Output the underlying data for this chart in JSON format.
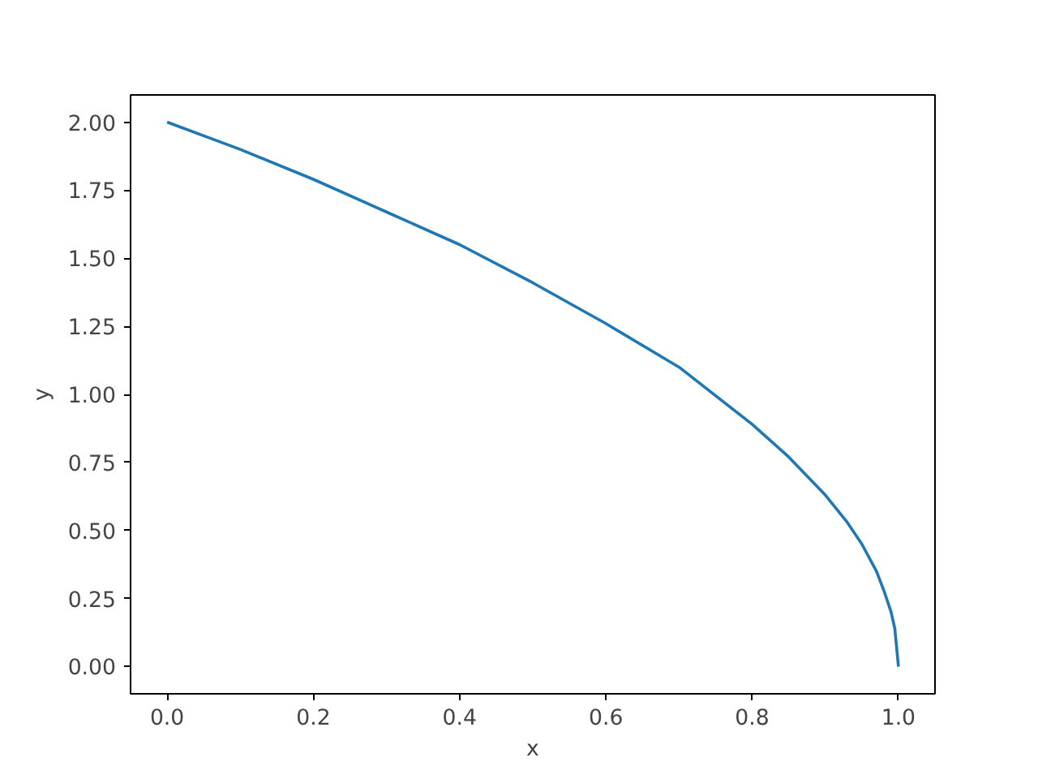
{
  "chart_data": {
    "type": "line",
    "xlabel": "x",
    "ylabel": "y",
    "x": [
      0,
      0.1,
      0.2,
      0.3,
      0.4,
      0.5,
      0.6,
      0.7,
      0.8,
      0.85,
      0.9,
      0.93,
      0.95,
      0.97,
      0.98,
      0.99,
      0.995,
      1.0
    ],
    "series": [
      {
        "color": "#1f77b4",
        "values": [
          2.0,
          1.9,
          1.79,
          1.67,
          1.55,
          1.41,
          1.26,
          1.1,
          0.89,
          0.77,
          0.63,
          0.53,
          0.45,
          0.35,
          0.28,
          0.2,
          0.14,
          0.0
        ]
      }
    ],
    "xlim": [
      -0.05,
      1.05
    ],
    "ylim": [
      -0.1,
      2.1
    ],
    "xticks": [
      {
        "value": 0,
        "label": "0.0"
      },
      {
        "value": 0.2,
        "label": "0.2"
      },
      {
        "value": 0.4,
        "label": "0.4"
      },
      {
        "value": 0.6,
        "label": "0.6"
      },
      {
        "value": 0.8,
        "label": "0.8"
      },
      {
        "value": 1.0,
        "label": "1.0"
      }
    ],
    "yticks": [
      {
        "value": 0,
        "label": "0.00"
      },
      {
        "value": 0.25,
        "label": "0.25"
      },
      {
        "value": 0.5,
        "label": "0.50"
      },
      {
        "value": 0.75,
        "label": "0.75"
      },
      {
        "value": 1.0,
        "label": "1.00"
      },
      {
        "value": 1.25,
        "label": "1.25"
      },
      {
        "value": 1.5,
        "label": "1.50"
      },
      {
        "value": 1.75,
        "label": "1.75"
      },
      {
        "value": 2.0,
        "label": "2.00"
      }
    ],
    "grid": false,
    "line_style": "solid",
    "marker": "none"
  }
}
